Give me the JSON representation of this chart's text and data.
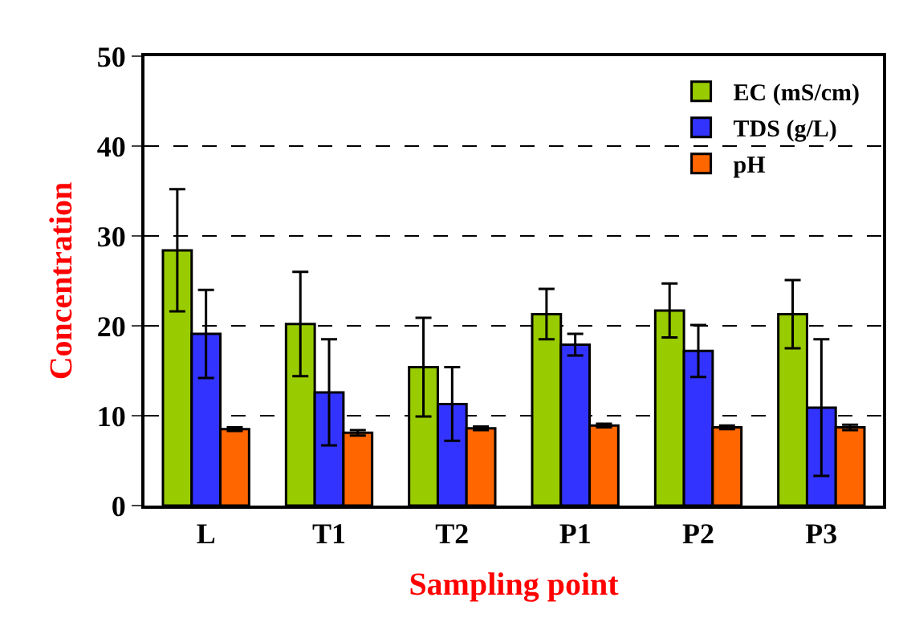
{
  "chart_data": {
    "type": "bar",
    "xlabel": "Sampling point",
    "ylabel": "Concentration",
    "categories": [
      "L",
      "T1",
      "T2",
      "P1",
      "P2",
      "P3"
    ],
    "series": [
      {
        "name": "EC (mS/cm)",
        "color": "#99cc00",
        "values": [
          28.4,
          20.2,
          15.4,
          21.3,
          21.7,
          21.3
        ],
        "errors": [
          6.8,
          5.8,
          5.5,
          2.8,
          3,
          3.8
        ]
      },
      {
        "name": "TDS (g/L)",
        "color": "#3333ff",
        "values": [
          19.1,
          12.6,
          11.3,
          17.9,
          17.2,
          10.9
        ],
        "errors": [
          4.9,
          5.9,
          4.1,
          1.2,
          2.9,
          7.6
        ]
      },
      {
        "name": "pH",
        "color": "#ff6600",
        "values": [
          8.5,
          8.1,
          8.6,
          8.9,
          8.7,
          8.7
        ],
        "errors": [
          0.2,
          0.3,
          0.2,
          0.2,
          0.2,
          0.3
        ]
      }
    ],
    "ylim": [
      0,
      50
    ],
    "yticks": [
      0,
      10,
      20,
      30,
      40,
      50
    ],
    "grid": "y",
    "legend": "top right"
  }
}
